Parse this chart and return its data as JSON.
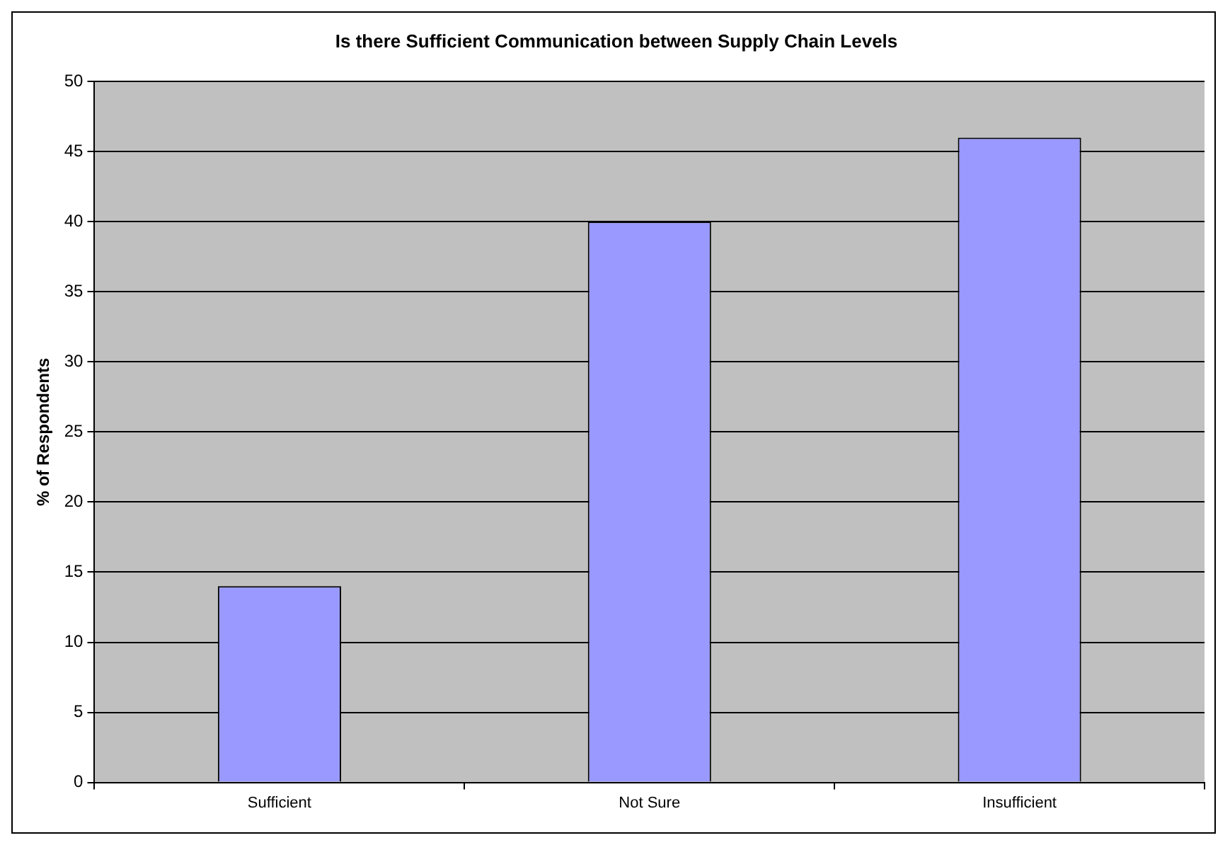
{
  "chart_data": {
    "type": "bar",
    "title": "Is there Sufficient Communication between Supply Chain Levels",
    "ylabel": "% of Respondents",
    "categories": [
      "Sufficient",
      "Not Sure",
      "Insufficient"
    ],
    "values": [
      14,
      40,
      46
    ],
    "color": "#9999ff",
    "ylim": [
      0,
      50
    ],
    "yticks": [
      0,
      5,
      10,
      15,
      20,
      25,
      30,
      35,
      40,
      45,
      50
    ],
    "grid": "y",
    "legend": false
  }
}
